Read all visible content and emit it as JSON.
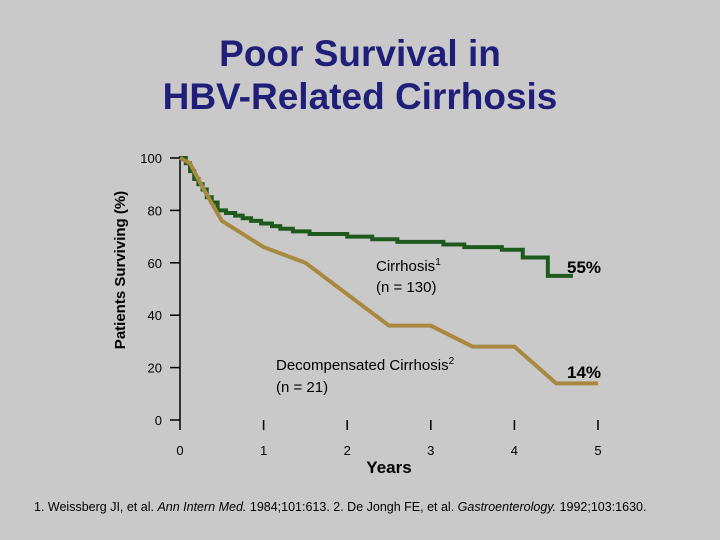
{
  "title": {
    "line1": "Poor Survival in",
    "line2": "HBV-Related Cirrhosis"
  },
  "chart_data": {
    "type": "line",
    "title": "Poor Survival in HBV-Related Cirrhosis",
    "xlabel": "Years",
    "ylabel": "Patients Surviving (%)",
    "xlim": [
      0,
      5
    ],
    "ylim": [
      0,
      100
    ],
    "x_ticks": [
      "0",
      "1",
      "2",
      "3",
      "4",
      "5"
    ],
    "y_ticks": [
      "0",
      "20",
      "40",
      "60",
      "80",
      "100"
    ],
    "grid": false,
    "series": [
      {
        "name": "Cirrhosis",
        "sup": "1",
        "sub_label": "(n = 130)",
        "color": "#1e5a1e",
        "step": true,
        "end_label": "55%",
        "x": [
          0,
          0.07,
          0.12,
          0.17,
          0.22,
          0.27,
          0.32,
          0.38,
          0.45,
          0.55,
          0.66,
          0.75,
          0.85,
          0.97,
          1.1,
          1.2,
          1.35,
          1.55,
          1.8,
          2.0,
          2.3,
          2.6,
          2.9,
          3.15,
          3.4,
          3.6,
          3.85,
          4.1,
          4.4,
          4.7
        ],
        "y": [
          100,
          98,
          95,
          92,
          90,
          88,
          85,
          83,
          80,
          79,
          78,
          77,
          76,
          75,
          74,
          73,
          72,
          71,
          71,
          70,
          69,
          68,
          68,
          67,
          66,
          66,
          65,
          62,
          55,
          55
        ]
      },
      {
        "name": "Decompensated Cirrhosis",
        "sup": "2",
        "sub_label": "(n = 21)",
        "color": "#a8893f",
        "step": false,
        "end_label": "14%",
        "x": [
          0,
          0.12,
          0.25,
          0.5,
          1.0,
          1.5,
          2.0,
          2.5,
          3.0,
          3.5,
          4.0,
          4.5,
          5.0
        ],
        "y": [
          100,
          98,
          90,
          76,
          66,
          60,
          48,
          36,
          36,
          28,
          28,
          14,
          14
        ]
      }
    ]
  },
  "footnote": {
    "ref1_authors": "1. Weissberg JI, et al. ",
    "ref1_journal": "Ann Intern Med.",
    "ref1_details": " 1984;101:613.  ",
    "ref2_authors": "2. De Jongh FE, et al. ",
    "ref2_journal": "Gastroenterology.",
    "ref2_details": " 1992;103:1630."
  }
}
